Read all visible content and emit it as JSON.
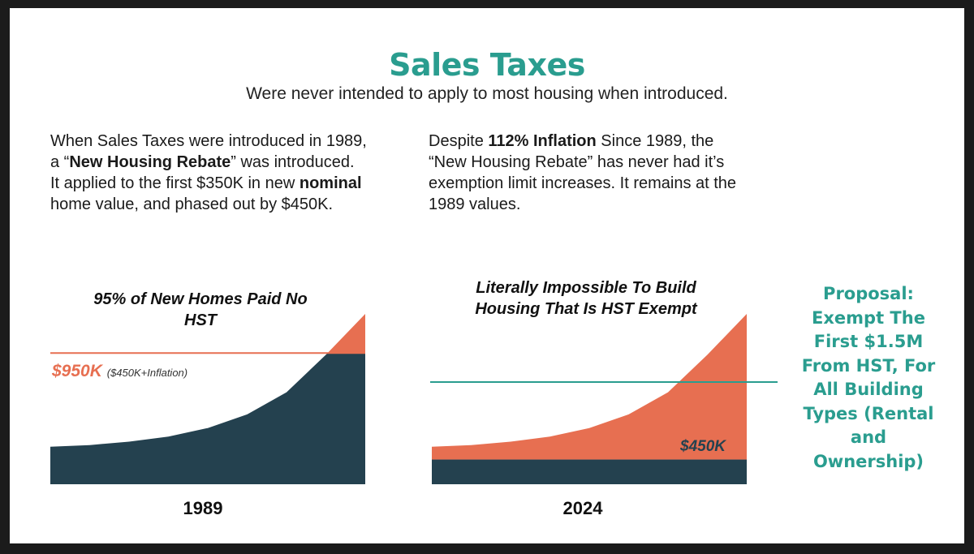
{
  "title": "Sales Taxes",
  "subtitle": "Were never intended to apply to most housing when introduced.",
  "left_paragraph": {
    "t1": "When Sales Taxes were introduced in 1989, a “",
    "b1": "New Housing Rebate",
    "t2": "” was introduced.  It applied to the first $350K in new ",
    "b2": "nominal",
    "t3": " home value, and phased out by $450K."
  },
  "right_paragraph": {
    "t1": "Despite ",
    "b1": "112% Inflation",
    "t2": " Since 1989, the “New Housing Rebate” has never had it’s exemption limit increases. It remains at the 1989 values."
  },
  "chart_data": [
    {
      "type": "area",
      "title": "95% of New Homes Paid No HST",
      "xlabel": "1989",
      "threshold_label": "$950K",
      "threshold_note": "($450K+Inflation)",
      "threshold_fraction_of_max": 0.77,
      "curve_fraction_of_max": [
        0.22,
        0.23,
        0.25,
        0.28,
        0.33,
        0.41,
        0.54,
        0.76,
        1.0
      ],
      "colors": {
        "below_threshold": "#24414f",
        "above_threshold": "#e76f51",
        "threshold_line": "#e76f51"
      }
    },
    {
      "type": "area",
      "title": "Literally Impossible To Build Housing That Is HST Exempt",
      "xlabel": "2024",
      "threshold_label": "$450K",
      "threshold_fraction_of_max": 0.145,
      "curve_fraction_of_max": [
        0.22,
        0.23,
        0.25,
        0.28,
        0.33,
        0.41,
        0.54,
        0.76,
        1.0
      ],
      "reference_line_color": "#2a9d8f",
      "colors": {
        "below_threshold": "#24414f",
        "above_threshold": "#e76f51"
      }
    }
  ],
  "proposal_lines": [
    "Proposal:",
    "Exempt The",
    "First $1.5M",
    "From HST, For",
    "All Building",
    "Types (Rental",
    "and",
    "Ownership)"
  ],
  "colors": {
    "accent_teal": "#2a9d8f",
    "accent_orange": "#e76f51",
    "navy": "#24414f"
  }
}
